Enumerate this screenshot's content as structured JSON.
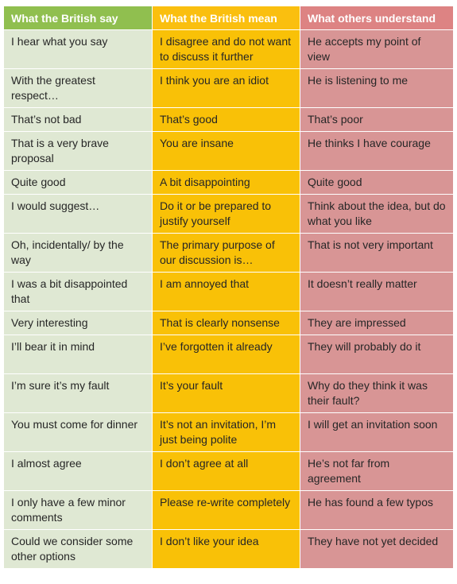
{
  "headers": {
    "say": "What the British say",
    "mean": "What the British mean",
    "understand": "What others understand"
  },
  "rows": [
    {
      "say": "I hear what you say",
      "mean": "I disagree and do not want to discuss it further",
      "understand": "He accepts my point of view"
    },
    {
      "say": "With the greatest respect…",
      "mean": "I think you are an idiot",
      "understand": "He is listening to me"
    },
    {
      "say": "That’s not bad",
      "mean": "That’s good",
      "understand": "That’s poor"
    },
    {
      "say": "That is a very brave proposal",
      "mean": "You are insane",
      "understand": "He thinks I have courage"
    },
    {
      "say": "Quite good",
      "mean": "A bit disappointing",
      "understand": "Quite good"
    },
    {
      "say": "I would suggest…",
      "mean": "Do it or be prepared to justify yourself",
      "understand": "Think about the idea, but do what you like"
    },
    {
      "say": "Oh, incidentally/ by the way",
      "mean": "The primary purpose of our discussion is…",
      "understand": "That is not very important"
    },
    {
      "say": "I was a bit disappointed that",
      "mean": "I am annoyed that",
      "understand": "It doesn’t really matter"
    },
    {
      "say": "Very interesting",
      "mean": "That is clearly nonsense",
      "understand": "They are impressed"
    },
    {
      "say": "I’ll bear it in mind",
      "mean": "I’ve forgotten it already",
      "understand": "They will probably do it"
    },
    {
      "say": "I’m sure it’s my fault",
      "mean": "It’s your fault",
      "understand": "Why do they think it was their fault?"
    },
    {
      "say": "You must come for dinner",
      "mean": "It’s not an invitation, I’m just being polite",
      "understand": "I will get an invitation soon"
    },
    {
      "say": "I almost agree",
      "mean": "I don’t agree at all",
      "understand": "He’s not far from agreement"
    },
    {
      "say": "I only have a few minor comments",
      "mean": "Please re-write completely",
      "understand": "He has found a few typos"
    },
    {
      "say": "Could we consider some other options",
      "mean": "I don’t like your idea",
      "understand": "They have not yet decided"
    }
  ]
}
